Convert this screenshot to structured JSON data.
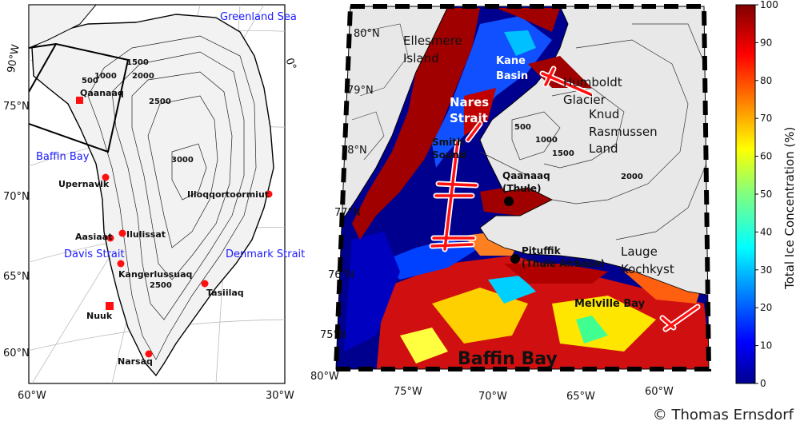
{
  "left_map": {
    "regions": [
      "Greenland Sea",
      "Baffin Bay",
      "Davis Strait",
      "Denmark Strait"
    ],
    "places": [
      "Qaanaaq",
      "Upernavik",
      "Ilulissat",
      "Aasiaat",
      "Kangerlussuaq",
      "Nuuk",
      "Narsaq",
      "Tasiilaq",
      "Illoqqortoormiut"
    ],
    "contour_labels": [
      "1500",
      "1000",
      "500",
      "2000",
      "2500",
      "3000",
      "2500"
    ],
    "lat_labels": [
      "75°N",
      "70°N",
      "65°N",
      "60°N"
    ],
    "lon_labels": [
      "90°W",
      "0°",
      "60°W",
      "30°W"
    ]
  },
  "right_map": {
    "places": {
      "ellesmere": [
        "Ellesmere",
        "Island"
      ],
      "kane": [
        "Kane",
        "Basin"
      ],
      "nares": [
        "Nares",
        "Strait"
      ],
      "humboldt": [
        "Humboldt",
        "Glacier"
      ],
      "knud": [
        "Knud",
        "Rasmussen",
        "Land"
      ],
      "smith": [
        "Smith",
        "Sound"
      ],
      "qaanaaq": [
        "Qaanaaq",
        "(Thule)"
      ],
      "pituffik": [
        "Pituffik",
        "(Thule Airbase)"
      ],
      "lauge": [
        "Lauge",
        "Kochkyst"
      ],
      "melville": "Melville Bay",
      "baffin": "Baffin Bay"
    },
    "contour_labels": [
      "500",
      "1000",
      "1500",
      "2000"
    ],
    "lat_labels": [
      "80°N",
      "79°N",
      "78°N",
      "77°N",
      "76°N",
      "75°N"
    ],
    "lon_labels": [
      "80°W",
      "75°W",
      "70°W",
      "65°W",
      "60°W"
    ]
  },
  "colorbar": {
    "label": "Total Ice Concentration (%)",
    "ticks": [
      "100",
      "90",
      "80",
      "70",
      "60",
      "50",
      "40",
      "30",
      "20",
      "10",
      "0"
    ]
  },
  "credit": "© Thomas Ernsdorf",
  "colors": {
    "label_blue": "#1a1aff",
    "marker_red": "#ff1010",
    "ice_high": "#800000",
    "ocean_low": "#00008f"
  }
}
